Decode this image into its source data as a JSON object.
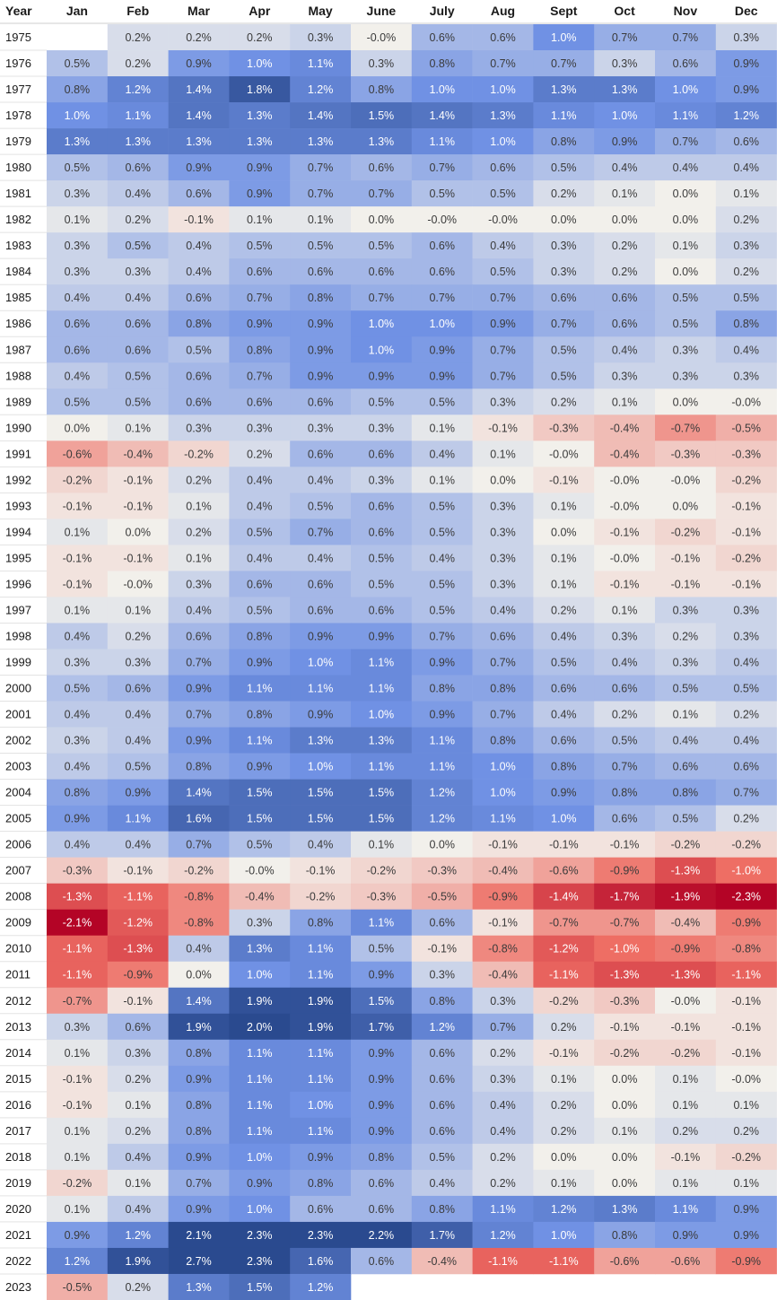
{
  "chart_data": {
    "type": "heatmap",
    "corner_label": "Year",
    "columns": [
      "Jan",
      "Feb",
      "Mar",
      "Apr",
      "May",
      "June",
      "July",
      "Aug",
      "Sept",
      "Oct",
      "Nov",
      "Dec"
    ],
    "value_suffix": "%",
    "color_scale": {
      "negative": "#b40426",
      "neutral": "#f2f0eb",
      "positive": "#2a4a8f"
    },
    "rows": [
      {
        "year": "1975",
        "values": [
          null,
          "0.2",
          "0.2",
          "0.2",
          "0.3",
          "-0.0",
          "0.6",
          "0.6",
          "1.0",
          "0.7",
          "0.7",
          "0.3"
        ]
      },
      {
        "year": "1976",
        "values": [
          "0.5",
          "0.2",
          "0.9",
          "1.0",
          "1.1",
          "0.3",
          "0.8",
          "0.7",
          "0.7",
          "0.3",
          "0.6",
          "0.9"
        ]
      },
      {
        "year": "1977",
        "values": [
          "0.8",
          "1.2",
          "1.4",
          "1.8",
          "1.2",
          "0.8",
          "1.0",
          "1.0",
          "1.3",
          "1.3",
          "1.0",
          "0.9"
        ]
      },
      {
        "year": "1978",
        "values": [
          "1.0",
          "1.1",
          "1.4",
          "1.3",
          "1.4",
          "1.5",
          "1.4",
          "1.3",
          "1.1",
          "1.0",
          "1.1",
          "1.2"
        ]
      },
      {
        "year": "1979",
        "values": [
          "1.3",
          "1.3",
          "1.3",
          "1.3",
          "1.3",
          "1.3",
          "1.1",
          "1.0",
          "0.8",
          "0.9",
          "0.7",
          "0.6"
        ]
      },
      {
        "year": "1980",
        "values": [
          "0.5",
          "0.6",
          "0.9",
          "0.9",
          "0.7",
          "0.6",
          "0.7",
          "0.6",
          "0.5",
          "0.4",
          "0.4",
          "0.4"
        ]
      },
      {
        "year": "1981",
        "values": [
          "0.3",
          "0.4",
          "0.6",
          "0.9",
          "0.7",
          "0.7",
          "0.5",
          "0.5",
          "0.2",
          "0.1",
          "0.0",
          "0.1"
        ]
      },
      {
        "year": "1982",
        "values": [
          "0.1",
          "0.2",
          "-0.1",
          "0.1",
          "0.1",
          "0.0",
          "-0.0",
          "-0.0",
          "0.0",
          "0.0",
          "0.0",
          "0.2"
        ]
      },
      {
        "year": "1983",
        "values": [
          "0.3",
          "0.5",
          "0.4",
          "0.5",
          "0.5",
          "0.5",
          "0.6",
          "0.4",
          "0.3",
          "0.2",
          "0.1",
          "0.3"
        ]
      },
      {
        "year": "1984",
        "values": [
          "0.3",
          "0.3",
          "0.4",
          "0.6",
          "0.6",
          "0.6",
          "0.6",
          "0.5",
          "0.3",
          "0.2",
          "0.0",
          "0.2"
        ]
      },
      {
        "year": "1985",
        "values": [
          "0.4",
          "0.4",
          "0.6",
          "0.7",
          "0.8",
          "0.7",
          "0.7",
          "0.7",
          "0.6",
          "0.6",
          "0.5",
          "0.5"
        ]
      },
      {
        "year": "1986",
        "values": [
          "0.6",
          "0.6",
          "0.8",
          "0.9",
          "0.9",
          "1.0",
          "1.0",
          "0.9",
          "0.7",
          "0.6",
          "0.5",
          "0.8"
        ]
      },
      {
        "year": "1987",
        "values": [
          "0.6",
          "0.6",
          "0.5",
          "0.8",
          "0.9",
          "1.0",
          "0.9",
          "0.7",
          "0.5",
          "0.4",
          "0.3",
          "0.4"
        ]
      },
      {
        "year": "1988",
        "values": [
          "0.4",
          "0.5",
          "0.6",
          "0.7",
          "0.9",
          "0.9",
          "0.9",
          "0.7",
          "0.5",
          "0.3",
          "0.3",
          "0.3"
        ]
      },
      {
        "year": "1989",
        "values": [
          "0.5",
          "0.5",
          "0.6",
          "0.6",
          "0.6",
          "0.5",
          "0.5",
          "0.3",
          "0.2",
          "0.1",
          "0.0",
          "-0.0"
        ]
      },
      {
        "year": "1990",
        "values": [
          "0.0",
          "0.1",
          "0.3",
          "0.3",
          "0.3",
          "0.3",
          "0.1",
          "-0.1",
          "-0.3",
          "-0.4",
          "-0.7",
          "-0.5"
        ]
      },
      {
        "year": "1991",
        "values": [
          "-0.6",
          "-0.4",
          "-0.2",
          "0.2",
          "0.6",
          "0.6",
          "0.4",
          "0.1",
          "-0.0",
          "-0.4",
          "-0.3",
          "-0.3"
        ]
      },
      {
        "year": "1992",
        "values": [
          "-0.2",
          "-0.1",
          "0.2",
          "0.4",
          "0.4",
          "0.3",
          "0.1",
          "0.0",
          "-0.1",
          "-0.0",
          "-0.0",
          "-0.2"
        ]
      },
      {
        "year": "1993",
        "values": [
          "-0.1",
          "-0.1",
          "0.1",
          "0.4",
          "0.5",
          "0.6",
          "0.5",
          "0.3",
          "0.1",
          "-0.0",
          "0.0",
          "-0.1"
        ]
      },
      {
        "year": "1994",
        "values": [
          "0.1",
          "0.0",
          "0.2",
          "0.5",
          "0.7",
          "0.6",
          "0.5",
          "0.3",
          "0.0",
          "-0.1",
          "-0.2",
          "-0.1"
        ]
      },
      {
        "year": "1995",
        "values": [
          "-0.1",
          "-0.1",
          "0.1",
          "0.4",
          "0.4",
          "0.5",
          "0.4",
          "0.3",
          "0.1",
          "-0.0",
          "-0.1",
          "-0.2"
        ]
      },
      {
        "year": "1996",
        "values": [
          "-0.1",
          "-0.0",
          "0.3",
          "0.6",
          "0.6",
          "0.5",
          "0.5",
          "0.3",
          "0.1",
          "-0.1",
          "-0.1",
          "-0.1"
        ]
      },
      {
        "year": "1997",
        "values": [
          "0.1",
          "0.1",
          "0.4",
          "0.5",
          "0.6",
          "0.6",
          "0.5",
          "0.4",
          "0.2",
          "0.1",
          "0.3",
          "0.3"
        ]
      },
      {
        "year": "1998",
        "values": [
          "0.4",
          "0.2",
          "0.6",
          "0.8",
          "0.9",
          "0.9",
          "0.7",
          "0.6",
          "0.4",
          "0.3",
          "0.2",
          "0.3"
        ]
      },
      {
        "year": "1999",
        "values": [
          "0.3",
          "0.3",
          "0.7",
          "0.9",
          "1.0",
          "1.1",
          "0.9",
          "0.7",
          "0.5",
          "0.4",
          "0.3",
          "0.4"
        ]
      },
      {
        "year": "2000",
        "values": [
          "0.5",
          "0.6",
          "0.9",
          "1.1",
          "1.1",
          "1.1",
          "0.8",
          "0.8",
          "0.6",
          "0.6",
          "0.5",
          "0.5"
        ]
      },
      {
        "year": "2001",
        "values": [
          "0.4",
          "0.4",
          "0.7",
          "0.8",
          "0.9",
          "1.0",
          "0.9",
          "0.7",
          "0.4",
          "0.2",
          "0.1",
          "0.2"
        ]
      },
      {
        "year": "2002",
        "values": [
          "0.3",
          "0.4",
          "0.9",
          "1.1",
          "1.3",
          "1.3",
          "1.1",
          "0.8",
          "0.6",
          "0.5",
          "0.4",
          "0.4"
        ]
      },
      {
        "year": "2003",
        "values": [
          "0.4",
          "0.5",
          "0.8",
          "0.9",
          "1.0",
          "1.1",
          "1.1",
          "1.0",
          "0.8",
          "0.7",
          "0.6",
          "0.6"
        ]
      },
      {
        "year": "2004",
        "values": [
          "0.8",
          "0.9",
          "1.4",
          "1.5",
          "1.5",
          "1.5",
          "1.2",
          "1.0",
          "0.9",
          "0.8",
          "0.8",
          "0.7"
        ]
      },
      {
        "year": "2005",
        "values": [
          "0.9",
          "1.1",
          "1.6",
          "1.5",
          "1.5",
          "1.5",
          "1.2",
          "1.1",
          "1.0",
          "0.6",
          "0.5",
          "0.2"
        ]
      },
      {
        "year": "2006",
        "values": [
          "0.4",
          "0.4",
          "0.7",
          "0.5",
          "0.4",
          "0.1",
          "0.0",
          "-0.1",
          "-0.1",
          "-0.1",
          "-0.2",
          "-0.2"
        ]
      },
      {
        "year": "2007",
        "values": [
          "-0.3",
          "-0.1",
          "-0.2",
          "-0.0",
          "-0.1",
          "-0.2",
          "-0.3",
          "-0.4",
          "-0.6",
          "-0.9",
          "-1.3",
          "-1.0"
        ]
      },
      {
        "year": "2008",
        "values": [
          "-1.3",
          "-1.1",
          "-0.8",
          "-0.4",
          "-0.2",
          "-0.3",
          "-0.5",
          "-0.9",
          "-1.4",
          "-1.7",
          "-1.9",
          "-2.3"
        ]
      },
      {
        "year": "2009",
        "values": [
          "-2.1",
          "-1.2",
          "-0.8",
          "0.3",
          "0.8",
          "1.1",
          "0.6",
          "-0.1",
          "-0.7",
          "-0.7",
          "-0.4",
          "-0.9"
        ]
      },
      {
        "year": "2010",
        "values": [
          "-1.1",
          "-1.3",
          "0.4",
          "1.3",
          "1.1",
          "0.5",
          "-0.1",
          "-0.8",
          "-1.2",
          "-1.0",
          "-0.9",
          "-0.8"
        ]
      },
      {
        "year": "2011",
        "values": [
          "-1.1",
          "-0.9",
          "0.0",
          "1.0",
          "1.1",
          "0.9",
          "0.3",
          "-0.4",
          "-1.1",
          "-1.3",
          "-1.3",
          "-1.1"
        ]
      },
      {
        "year": "2012",
        "values": [
          "-0.7",
          "-0.1",
          "1.4",
          "1.9",
          "1.9",
          "1.5",
          "0.8",
          "0.3",
          "-0.2",
          "-0.3",
          "-0.0",
          "-0.1"
        ]
      },
      {
        "year": "2013",
        "values": [
          "0.3",
          "0.6",
          "1.9",
          "2.0",
          "1.9",
          "1.7",
          "1.2",
          "0.7",
          "0.2",
          "-0.1",
          "-0.1",
          "-0.1"
        ]
      },
      {
        "year": "2014",
        "values": [
          "0.1",
          "0.3",
          "0.8",
          "1.1",
          "1.1",
          "0.9",
          "0.6",
          "0.2",
          "-0.1",
          "-0.2",
          "-0.2",
          "-0.1"
        ]
      },
      {
        "year": "2015",
        "values": [
          "-0.1",
          "0.2",
          "0.9",
          "1.1",
          "1.1",
          "0.9",
          "0.6",
          "0.3",
          "0.1",
          "0.0",
          "0.1",
          "-0.0"
        ]
      },
      {
        "year": "2016",
        "values": [
          "-0.1",
          "0.1",
          "0.8",
          "1.1",
          "1.0",
          "0.9",
          "0.6",
          "0.4",
          "0.2",
          "0.0",
          "0.1",
          "0.1"
        ]
      },
      {
        "year": "2017",
        "values": [
          "0.1",
          "0.2",
          "0.8",
          "1.1",
          "1.1",
          "0.9",
          "0.6",
          "0.4",
          "0.2",
          "0.1",
          "0.2",
          "0.2"
        ]
      },
      {
        "year": "2018",
        "values": [
          "0.1",
          "0.4",
          "0.9",
          "1.0",
          "0.9",
          "0.8",
          "0.5",
          "0.2",
          "0.0",
          "0.0",
          "-0.1",
          "-0.2"
        ]
      },
      {
        "year": "2019",
        "values": [
          "-0.2",
          "0.1",
          "0.7",
          "0.9",
          "0.8",
          "0.6",
          "0.4",
          "0.2",
          "0.1",
          "0.0",
          "0.1",
          "0.1"
        ]
      },
      {
        "year": "2020",
        "values": [
          "0.1",
          "0.4",
          "0.9",
          "1.0",
          "0.6",
          "0.6",
          "0.8",
          "1.1",
          "1.2",
          "1.3",
          "1.1",
          "0.9"
        ]
      },
      {
        "year": "2021",
        "values": [
          "0.9",
          "1.2",
          "2.1",
          "2.3",
          "2.3",
          "2.2",
          "1.7",
          "1.2",
          "1.0",
          "0.8",
          "0.9",
          "0.9"
        ]
      },
      {
        "year": "2022",
        "values": [
          "1.2",
          "1.9",
          "2.7",
          "2.3",
          "1.6",
          "0.6",
          "-0.4",
          "-1.1",
          "-1.1",
          "-0.6",
          "-0.6",
          "-0.9"
        ]
      },
      {
        "year": "2023",
        "values": [
          "-0.5",
          "0.2",
          "1.3",
          "1.5",
          "1.2",
          null,
          null,
          null,
          null,
          null,
          null,
          null
        ]
      }
    ]
  }
}
